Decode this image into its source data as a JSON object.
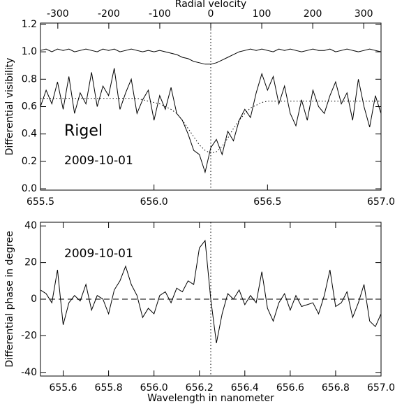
{
  "chart_data": [
    {
      "type": "line",
      "ylabel": "Differential visibility",
      "x2label": "Radial velocity",
      "annotations": [
        "Rigel",
        "2009-10-01"
      ],
      "x": [
        655.5,
        655.525,
        655.55,
        655.575,
        655.6,
        655.625,
        655.65,
        655.675,
        655.7,
        655.725,
        655.75,
        655.775,
        655.8,
        655.825,
        655.85,
        655.875,
        655.9,
        655.925,
        655.95,
        655.975,
        656.0,
        656.025,
        656.05,
        656.075,
        656.1,
        656.125,
        656.15,
        656.175,
        656.2,
        656.225,
        656.25,
        656.275,
        656.3,
        656.325,
        656.35,
        656.375,
        656.4,
        656.425,
        656.45,
        656.475,
        656.5,
        656.525,
        656.55,
        656.575,
        656.6,
        656.625,
        656.65,
        656.675,
        656.7,
        656.725,
        656.75,
        656.775,
        656.8,
        656.825,
        656.85,
        656.875,
        656.9,
        656.925,
        656.95,
        656.975,
        657.0
      ],
      "series": [
        {
          "color": "#000000",
          "dash": "solid",
          "values": [
            1.01,
            1.02,
            1.0,
            1.02,
            1.01,
            1.02,
            1.0,
            1.01,
            1.02,
            1.01,
            1.0,
            1.02,
            1.01,
            1.02,
            1.0,
            1.01,
            1.02,
            1.01,
            1.0,
            1.01,
            1.0,
            1.01,
            1.0,
            0.99,
            0.98,
            0.96,
            0.95,
            0.93,
            0.92,
            0.91,
            0.91,
            0.92,
            0.94,
            0.96,
            0.98,
            1.0,
            1.01,
            1.02,
            1.01,
            1.02,
            1.01,
            1.0,
            1.02,
            1.01,
            1.02,
            1.01,
            1.0,
            1.01,
            1.02,
            1.01,
            1.01,
            1.02,
            1.0,
            1.01,
            1.02,
            1.01,
            1.0,
            1.01,
            1.02,
            1.01,
            1.0
          ]
        },
        {
          "color": "#000000",
          "dash": "solid",
          "values": [
            0.6,
            0.72,
            0.62,
            0.78,
            0.58,
            0.82,
            0.55,
            0.7,
            0.62,
            0.85,
            0.6,
            0.75,
            0.68,
            0.88,
            0.58,
            0.7,
            0.8,
            0.55,
            0.65,
            0.72,
            0.5,
            0.68,
            0.58,
            0.74,
            0.55,
            0.5,
            0.4,
            0.28,
            0.25,
            0.12,
            0.3,
            0.36,
            0.25,
            0.42,
            0.35,
            0.5,
            0.58,
            0.52,
            0.7,
            0.84,
            0.72,
            0.82,
            0.62,
            0.75,
            0.55,
            0.46,
            0.65,
            0.5,
            0.72,
            0.6,
            0.55,
            0.68,
            0.78,
            0.62,
            0.7,
            0.5,
            0.8,
            0.6,
            0.45,
            0.68,
            0.55
          ]
        },
        {
          "color": "#000000",
          "dash": "dotted",
          "values": [
            0.66,
            0.66,
            0.66,
            0.66,
            0.66,
            0.66,
            0.66,
            0.66,
            0.66,
            0.66,
            0.66,
            0.66,
            0.66,
            0.66,
            0.66,
            0.66,
            0.66,
            0.66,
            0.65,
            0.64,
            0.63,
            0.62,
            0.6,
            0.58,
            0.55,
            0.5,
            0.44,
            0.38,
            0.32,
            0.28,
            0.26,
            0.27,
            0.31,
            0.37,
            0.44,
            0.5,
            0.55,
            0.59,
            0.61,
            0.63,
            0.64,
            0.64,
            0.64,
            0.64,
            0.64,
            0.64,
            0.64,
            0.64,
            0.64,
            0.64,
            0.64,
            0.64,
            0.64,
            0.64,
            0.64,
            0.64,
            0.64,
            0.64,
            0.64,
            0.64,
            0.64
          ]
        }
      ],
      "xlim": [
        655.5,
        657.0
      ],
      "xticks": [
        655.5,
        {
          "value": 656.0,
          "label": "656.0"
        },
        656.5,
        {
          "value": 657.0,
          "label": "657.0"
        }
      ],
      "x2lim": [
        -334,
        334
      ],
      "x2ticks": [
        -300,
        -200,
        -100,
        0,
        100,
        200,
        300
      ],
      "ylim": [
        -0.01,
        1.21
      ],
      "yticks": [
        {
          "value": 0,
          "label": "0.0"
        },
        0.2,
        0.4,
        0.6,
        0.8,
        {
          "value": 1,
          "label": "1.0"
        },
        1.2
      ],
      "vline": 656.25
    },
    {
      "type": "line",
      "xlabel": "Wavelength in nanometer",
      "ylabel": "Differential phase in degree",
      "annotations": [
        "2009-10-01"
      ],
      "x": [
        655.5,
        655.525,
        655.55,
        655.575,
        655.6,
        655.625,
        655.65,
        655.675,
        655.7,
        655.725,
        655.75,
        655.775,
        655.8,
        655.825,
        655.85,
        655.875,
        655.9,
        655.925,
        655.95,
        655.975,
        656.0,
        656.025,
        656.05,
        656.075,
        656.1,
        656.125,
        656.15,
        656.175,
        656.2,
        656.225,
        656.25,
        656.275,
        656.3,
        656.325,
        656.35,
        656.375,
        656.4,
        656.425,
        656.45,
        656.475,
        656.5,
        656.525,
        656.55,
        656.575,
        656.6,
        656.625,
        656.65,
        656.675,
        656.7,
        656.725,
        656.75,
        656.775,
        656.8,
        656.825,
        656.85,
        656.875,
        656.9,
        656.925,
        656.95,
        656.975,
        657.0
      ],
      "series": [
        {
          "color": "#000000",
          "dash": "solid",
          "values": [
            5,
            3,
            -2,
            16,
            -14,
            -2,
            2,
            -1,
            8,
            -6,
            2,
            0,
            -8,
            5,
            10,
            18,
            8,
            2,
            -10,
            -5,
            -8,
            2,
            4,
            -2,
            6,
            4,
            10,
            8,
            28,
            32,
            0,
            -24,
            -8,
            3,
            0,
            5,
            -3,
            2,
            -2,
            15,
            -5,
            -12,
            -2,
            3,
            -6,
            2,
            -4,
            -3,
            -2,
            -8,
            2,
            16,
            -4,
            -2,
            4,
            -10,
            -2,
            8,
            -12,
            -15,
            -8
          ]
        }
      ],
      "xlim": [
        655.5,
        657.0
      ],
      "xticks": [
        655.6,
        655.8,
        {
          "value": 656.0,
          "label": "656.0"
        },
        656.2,
        656.4,
        656.6,
        656.8,
        {
          "value": 657.0,
          "label": "657.0"
        }
      ],
      "ylim": [
        -42,
        42
      ],
      "yticks": [
        -40,
        -20,
        0,
        20,
        40
      ],
      "vline": 656.25,
      "hline": 0
    }
  ]
}
